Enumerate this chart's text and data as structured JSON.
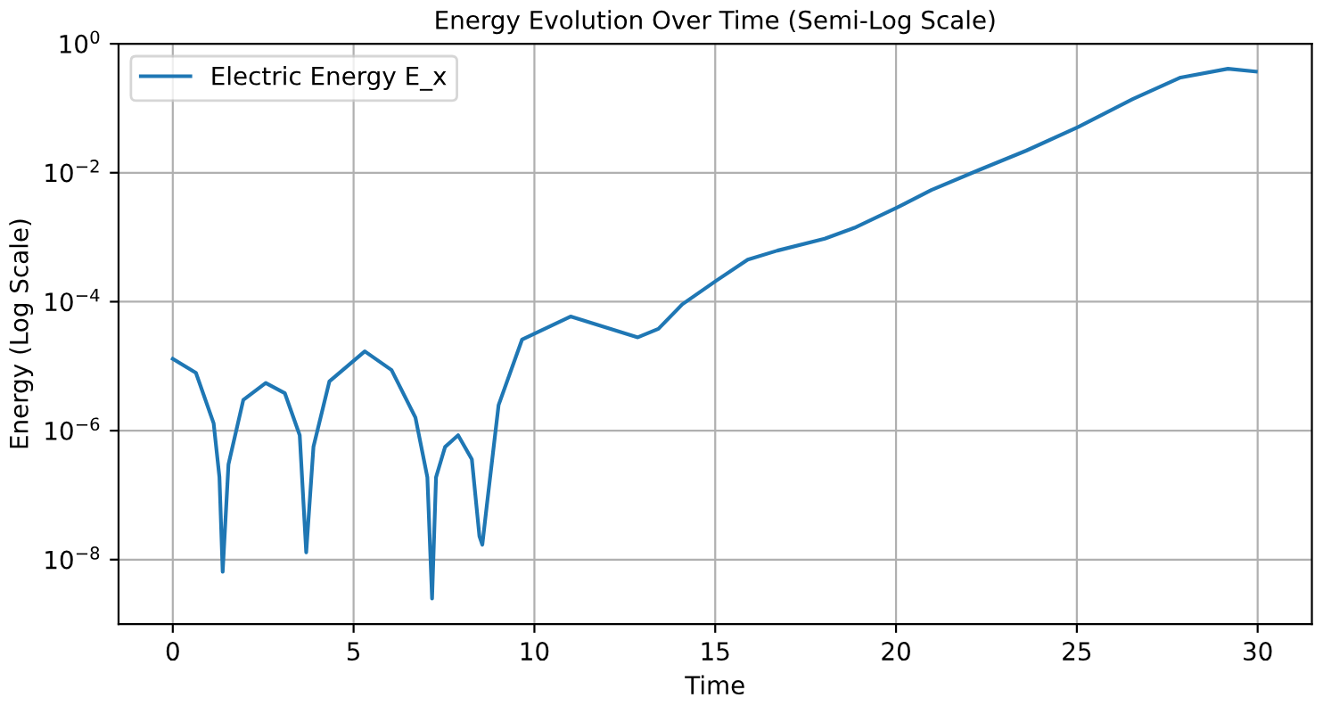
{
  "chart_data": {
    "type": "line",
    "title": "Energy Evolution Over Time (Semi-Log Scale)",
    "xlabel": "Time",
    "ylabel": "Energy (Log Scale)",
    "series": [
      {
        "name": "Electric Energy E_x",
        "color": "#1f77b4",
        "x": [
          0,
          0.64,
          1.13,
          1.29,
          1.38,
          1.54,
          1.95,
          2.57,
          3.1,
          3.51,
          3.69,
          3.89,
          4.33,
          5.31,
          6.05,
          6.71,
          7.04,
          7.17,
          7.28,
          7.53,
          7.89,
          8.27,
          8.48,
          8.56,
          8.68,
          9.01,
          9.66,
          11.0,
          12.86,
          13.43,
          14.09,
          15.02,
          15.9,
          16.72,
          18.03,
          18.85,
          20.04,
          20.98,
          22.29,
          23.6,
          25.03,
          26.56,
          27.87,
          29.18,
          29.95
        ],
        "values": [
          1.3e-05,
          7.9e-06,
          1.3e-06,
          1.9e-07,
          6.5e-09,
          3e-07,
          3e-06,
          5.5e-06,
          3.8e-06,
          8.5e-07,
          1.3e-08,
          5.6e-07,
          5.8e-06,
          1.7e-05,
          8.7e-06,
          1.6e-06,
          1.9e-07,
          2.5e-09,
          1.9e-07,
          5.6e-07,
          8.5e-07,
          3.6e-07,
          2.3e-08,
          1.7e-08,
          6.6e-08,
          2.5e-06,
          2.6e-05,
          5.9e-05,
          2.8e-05,
          3.8e-05,
          9.1e-05,
          0.00021,
          0.00045,
          0.00062,
          0.00095,
          0.0014,
          0.0029,
          0.0054,
          0.011,
          0.022,
          0.051,
          0.14,
          0.3,
          0.41,
          0.37
        ]
      }
    ],
    "log": "y",
    "xlim": [
      -1.5,
      31.5
    ],
    "xticks": [
      0,
      5,
      10,
      15,
      20,
      25,
      30
    ],
    "ylim": [
      1e-09,
      1
    ],
    "yticks": [
      {
        "value": 1e-08,
        "label": "10$^{−8}$"
      },
      {
        "value": 1e-06,
        "label": "10$^{−6}$"
      },
      {
        "value": 0.0001,
        "label": "10$^{−4}$"
      },
      {
        "value": 0.01,
        "label": "10$^{−2}$"
      },
      {
        "value": 1,
        "label": "10$^{0}$"
      }
    ],
    "grid": true,
    "legend": "top left",
    "marker": "none",
    "line_style": "solid"
  }
}
